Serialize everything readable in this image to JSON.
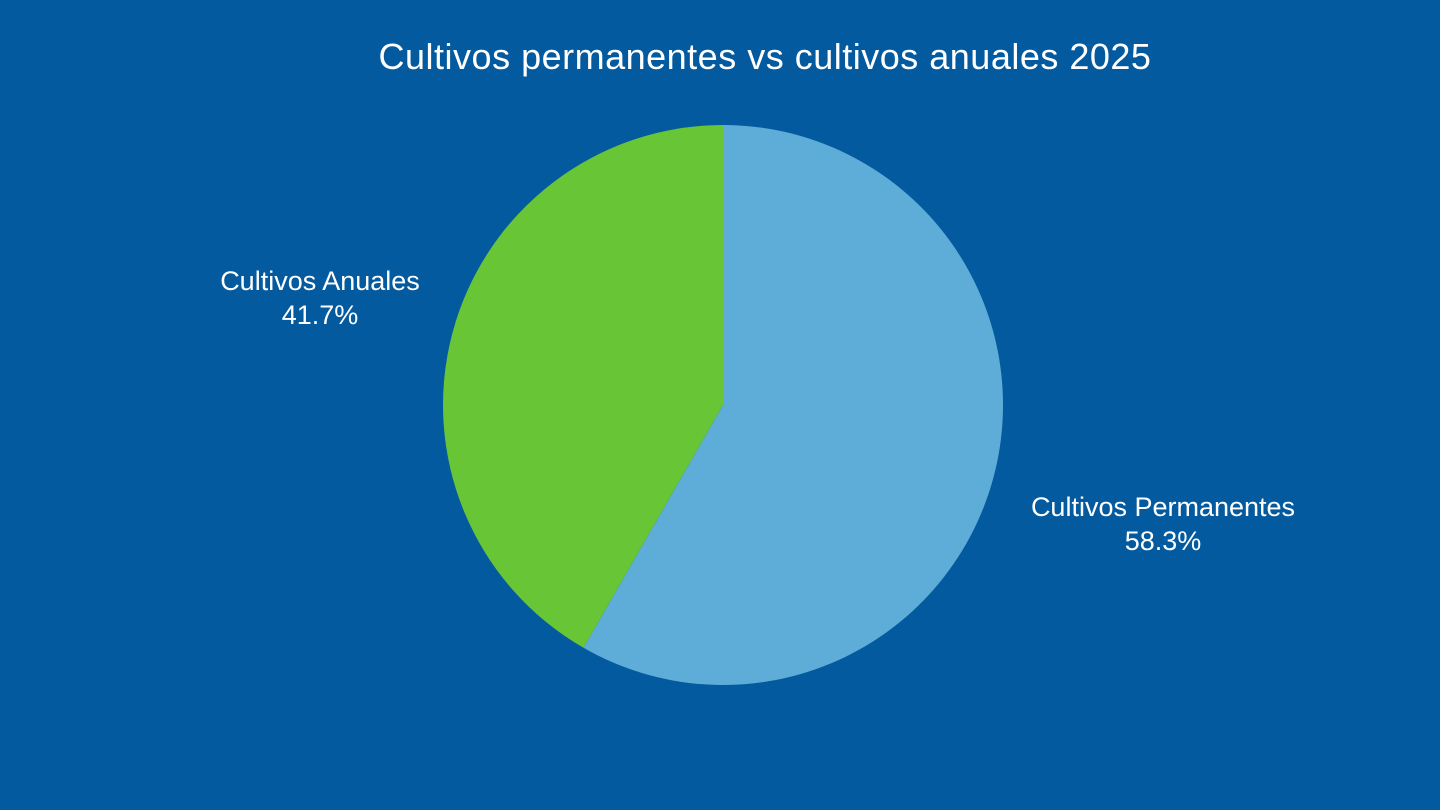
{
  "background_color": "#045a9e",
  "chart_data": {
    "type": "pie",
    "title": "Cultivos permanentes vs cultivos anuales 2025",
    "slices": [
      {
        "label": "Cultivos Permanentes",
        "value": 58.3,
        "value_label": "58.3%",
        "color": "#5eacd8"
      },
      {
        "label": "Cultivos Anuales",
        "value": 41.7,
        "value_label": "41.7%",
        "color": "#68c535"
      }
    ]
  }
}
